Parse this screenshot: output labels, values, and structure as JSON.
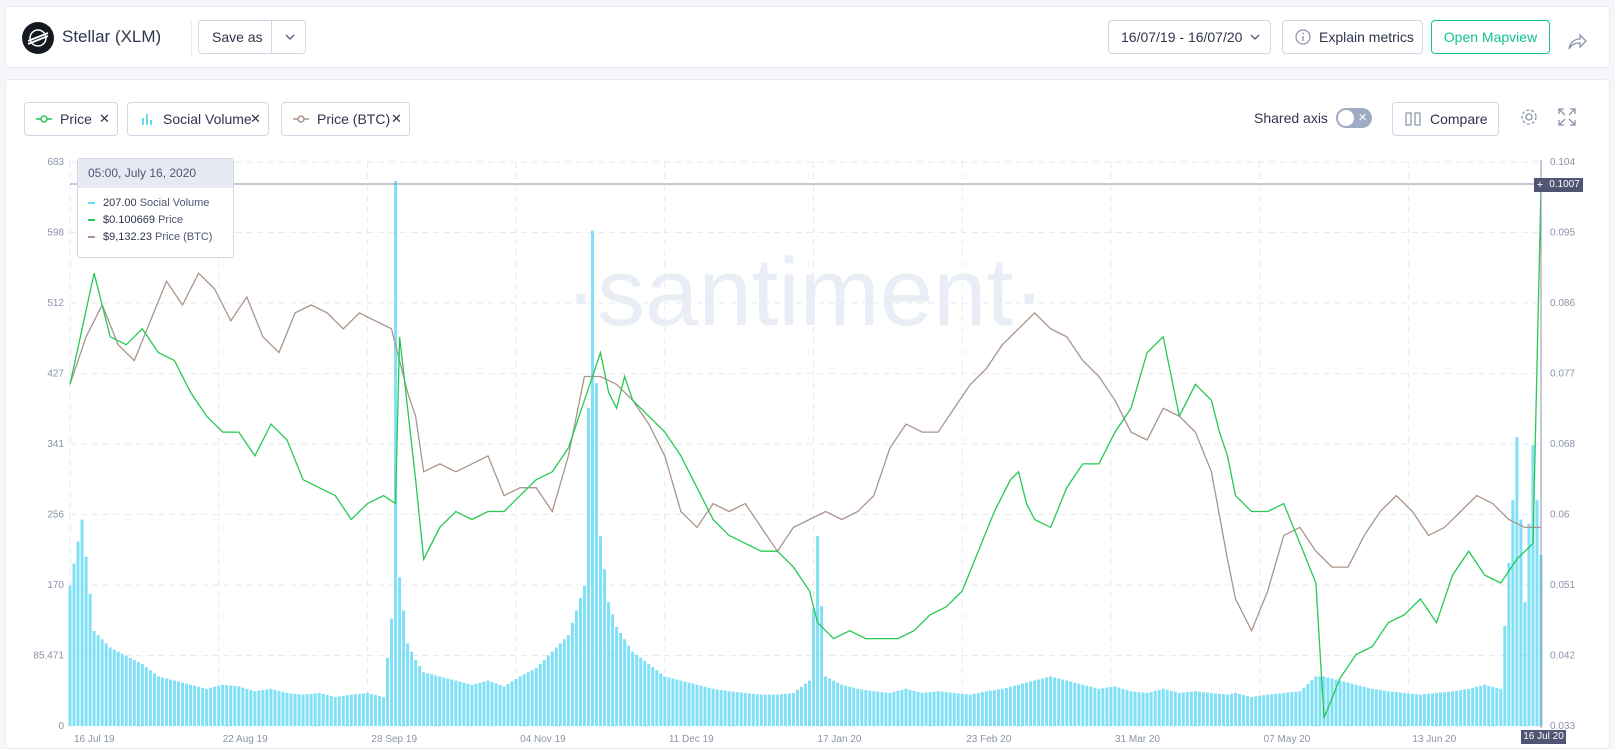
{
  "header": {
    "title": "Stellar (XLM)",
    "save_as": "Save as",
    "date_range": "16/07/19 - 16/07/20",
    "explain_metrics": "Explain metrics",
    "open_mapview": "Open Mapview"
  },
  "metrics": [
    {
      "label": "Price",
      "color": "#26c953"
    },
    {
      "label": "Social Volume",
      "color": "#68dbf4"
    },
    {
      "label": "Price (BTC)",
      "color": "#ac948c"
    }
  ],
  "controls": {
    "shared_axis": "Shared axis",
    "toggle_state": "✕",
    "compare": "Compare"
  },
  "watermark": "·santiment·",
  "tooltip": {
    "date": "05:00, July 16, 2020",
    "rows": [
      {
        "value": "207.00",
        "name": "Social Volume",
        "color": "#68dbf4"
      },
      {
        "value": "$0.100669",
        "name": "Price",
        "color": "#26c953"
      },
      {
        "value": "$9,132.23",
        "name": "Price (BTC)",
        "color": "#ac948c"
      }
    ]
  },
  "cursor_value": "0.1007",
  "cursor_date": "16 Jul 20",
  "chart_data": {
    "type": "line",
    "left_axis": {
      "ticks": [
        "683",
        "598",
        "512",
        "427",
        "341",
        "256",
        "170",
        "85.471",
        "0"
      ],
      "range": [
        0,
        683
      ]
    },
    "right_axis": {
      "ticks": [
        "0.104",
        "0.095",
        "0.086",
        "0.077",
        "0.068",
        "0.06",
        "0.051",
        "0.042",
        "0.033"
      ],
      "range": [
        0.033,
        0.104
      ]
    },
    "x_ticks": [
      "16 Jul 19",
      "22 Aug 19",
      "28 Sep 19",
      "04 Nov 19",
      "11 Dec 19",
      "17 Jan 20",
      "23 Feb 20",
      "31 Mar 20",
      "07 May 20",
      "13 Jun 20"
    ],
    "x_range_days": [
      0,
      366
    ],
    "x_tick_days": [
      0,
      37,
      74,
      111,
      148,
      185,
      222,
      259,
      296,
      333
    ],
    "series": [
      {
        "name": "Price",
        "axis": "right",
        "color": "#26c953",
        "points": [
          [
            0,
            0.076
          ],
          [
            3,
            0.083
          ],
          [
            6,
            0.09
          ],
          [
            10,
            0.082
          ],
          [
            14,
            0.081
          ],
          [
            18,
            0.083
          ],
          [
            22,
            0.08
          ],
          [
            26,
            0.079
          ],
          [
            30,
            0.075
          ],
          [
            34,
            0.072
          ],
          [
            38,
            0.07
          ],
          [
            42,
            0.07
          ],
          [
            46,
            0.067
          ],
          [
            50,
            0.071
          ],
          [
            54,
            0.069
          ],
          [
            58,
            0.064
          ],
          [
            62,
            0.063
          ],
          [
            66,
            0.062
          ],
          [
            70,
            0.059
          ],
          [
            74,
            0.061
          ],
          [
            78,
            0.062
          ],
          [
            81,
            0.061
          ],
          [
            82,
            0.082
          ],
          [
            84,
            0.073
          ],
          [
            86,
            0.064
          ],
          [
            88,
            0.054
          ],
          [
            92,
            0.058
          ],
          [
            96,
            0.06
          ],
          [
            100,
            0.059
          ],
          [
            104,
            0.06
          ],
          [
            108,
            0.06
          ],
          [
            112,
            0.062
          ],
          [
            116,
            0.064
          ],
          [
            120,
            0.065
          ],
          [
            124,
            0.068
          ],
          [
            128,
            0.074
          ],
          [
            130,
            0.077
          ],
          [
            132,
            0.08
          ],
          [
            134,
            0.075
          ],
          [
            136,
            0.073
          ],
          [
            138,
            0.077
          ],
          [
            140,
            0.074
          ],
          [
            144,
            0.072
          ],
          [
            148,
            0.07
          ],
          [
            152,
            0.067
          ],
          [
            156,
            0.063
          ],
          [
            160,
            0.059
          ],
          [
            164,
            0.057
          ],
          [
            168,
            0.056
          ],
          [
            172,
            0.055
          ],
          [
            176,
            0.055
          ],
          [
            180,
            0.053
          ],
          [
            184,
            0.05
          ],
          [
            186,
            0.046
          ],
          [
            190,
            0.044
          ],
          [
            194,
            0.045
          ],
          [
            198,
            0.044
          ],
          [
            202,
            0.044
          ],
          [
            206,
            0.044
          ],
          [
            210,
            0.045
          ],
          [
            214,
            0.047
          ],
          [
            218,
            0.048
          ],
          [
            222,
            0.05
          ],
          [
            226,
            0.055
          ],
          [
            230,
            0.06
          ],
          [
            234,
            0.064
          ],
          [
            236,
            0.065
          ],
          [
            238,
            0.061
          ],
          [
            240,
            0.059
          ],
          [
            244,
            0.058
          ],
          [
            248,
            0.063
          ],
          [
            252,
            0.066
          ],
          [
            256,
            0.066
          ],
          [
            260,
            0.07
          ],
          [
            264,
            0.073
          ],
          [
            268,
            0.08
          ],
          [
            272,
            0.082
          ],
          [
            276,
            0.072
          ],
          [
            280,
            0.076
          ],
          [
            284,
            0.074
          ],
          [
            286,
            0.07
          ],
          [
            288,
            0.067
          ],
          [
            290,
            0.062
          ],
          [
            294,
            0.06
          ],
          [
            298,
            0.06
          ],
          [
            302,
            0.061
          ],
          [
            306,
            0.056
          ],
          [
            310,
            0.051
          ],
          [
            312,
            0.034
          ],
          [
            316,
            0.039
          ],
          [
            320,
            0.042
          ],
          [
            324,
            0.043
          ],
          [
            328,
            0.046
          ],
          [
            332,
            0.047
          ],
          [
            336,
            0.049
          ],
          [
            340,
            0.046
          ],
          [
            344,
            0.052
          ],
          [
            348,
            0.055
          ],
          [
            352,
            0.052
          ],
          [
            356,
            0.051
          ],
          [
            360,
            0.054
          ],
          [
            364,
            0.056
          ],
          [
            366,
            0.1007
          ]
        ]
      },
      {
        "name": "Price (BTC)",
        "axis": "right",
        "color": "#ac948c",
        "points": [
          [
            0,
            0.076
          ],
          [
            4,
            0.082
          ],
          [
            8,
            0.086
          ],
          [
            12,
            0.081
          ],
          [
            16,
            0.079
          ],
          [
            20,
            0.084
          ],
          [
            24,
            0.089
          ],
          [
            28,
            0.086
          ],
          [
            32,
            0.09
          ],
          [
            36,
            0.088
          ],
          [
            40,
            0.084
          ],
          [
            44,
            0.087
          ],
          [
            48,
            0.082
          ],
          [
            52,
            0.08
          ],
          [
            56,
            0.085
          ],
          [
            60,
            0.086
          ],
          [
            64,
            0.085
          ],
          [
            68,
            0.083
          ],
          [
            72,
            0.085
          ],
          [
            76,
            0.084
          ],
          [
            80,
            0.083
          ],
          [
            84,
            0.075
          ],
          [
            86,
            0.072
          ],
          [
            88,
            0.065
          ],
          [
            92,
            0.066
          ],
          [
            96,
            0.065
          ],
          [
            100,
            0.066
          ],
          [
            104,
            0.067
          ],
          [
            108,
            0.062
          ],
          [
            112,
            0.063
          ],
          [
            116,
            0.063
          ],
          [
            120,
            0.06
          ],
          [
            124,
            0.067
          ],
          [
            128,
            0.077
          ],
          [
            132,
            0.077
          ],
          [
            136,
            0.076
          ],
          [
            140,
            0.074
          ],
          [
            144,
            0.071
          ],
          [
            148,
            0.067
          ],
          [
            152,
            0.06
          ],
          [
            156,
            0.058
          ],
          [
            160,
            0.061
          ],
          [
            164,
            0.06
          ],
          [
            168,
            0.061
          ],
          [
            172,
            0.058
          ],
          [
            176,
            0.055
          ],
          [
            180,
            0.058
          ],
          [
            184,
            0.059
          ],
          [
            188,
            0.06
          ],
          [
            192,
            0.059
          ],
          [
            196,
            0.06
          ],
          [
            200,
            0.062
          ],
          [
            204,
            0.068
          ],
          [
            208,
            0.071
          ],
          [
            212,
            0.07
          ],
          [
            216,
            0.07
          ],
          [
            220,
            0.073
          ],
          [
            224,
            0.076
          ],
          [
            228,
            0.078
          ],
          [
            232,
            0.081
          ],
          [
            236,
            0.083
          ],
          [
            240,
            0.085
          ],
          [
            244,
            0.083
          ],
          [
            248,
            0.082
          ],
          [
            252,
            0.079
          ],
          [
            256,
            0.077
          ],
          [
            260,
            0.074
          ],
          [
            264,
            0.07
          ],
          [
            268,
            0.069
          ],
          [
            272,
            0.073
          ],
          [
            276,
            0.072
          ],
          [
            280,
            0.07
          ],
          [
            284,
            0.065
          ],
          [
            288,
            0.054
          ],
          [
            290,
            0.049
          ],
          [
            294,
            0.045
          ],
          [
            298,
            0.05
          ],
          [
            302,
            0.057
          ],
          [
            306,
            0.058
          ],
          [
            310,
            0.055
          ],
          [
            314,
            0.053
          ],
          [
            318,
            0.053
          ],
          [
            322,
            0.057
          ],
          [
            326,
            0.06
          ],
          [
            330,
            0.062
          ],
          [
            334,
            0.06
          ],
          [
            338,
            0.057
          ],
          [
            342,
            0.058
          ],
          [
            346,
            0.06
          ],
          [
            350,
            0.062
          ],
          [
            354,
            0.061
          ],
          [
            358,
            0.059
          ],
          [
            362,
            0.058
          ],
          [
            366,
            0.058
          ]
        ]
      },
      {
        "name": "Social Volume",
        "axis": "left",
        "type": "bar",
        "color": "#68dbf4",
        "points": [
          [
            0,
            170
          ],
          [
            3,
            250
          ],
          [
            6,
            115
          ],
          [
            10,
            95
          ],
          [
            14,
            85
          ],
          [
            18,
            75
          ],
          [
            22,
            60
          ],
          [
            26,
            55
          ],
          [
            30,
            50
          ],
          [
            34,
            45
          ],
          [
            38,
            50
          ],
          [
            42,
            48
          ],
          [
            46,
            42
          ],
          [
            50,
            45
          ],
          [
            54,
            40
          ],
          [
            58,
            38
          ],
          [
            62,
            40
          ],
          [
            66,
            35
          ],
          [
            70,
            38
          ],
          [
            74,
            40
          ],
          [
            78,
            35
          ],
          [
            80,
            130
          ],
          [
            81,
            660
          ],
          [
            82,
            180
          ],
          [
            84,
            100
          ],
          [
            86,
            80
          ],
          [
            88,
            65
          ],
          [
            92,
            60
          ],
          [
            96,
            55
          ],
          [
            100,
            50
          ],
          [
            104,
            55
          ],
          [
            108,
            48
          ],
          [
            112,
            60
          ],
          [
            116,
            70
          ],
          [
            120,
            90
          ],
          [
            124,
            110
          ],
          [
            128,
            170
          ],
          [
            130,
            600
          ],
          [
            132,
            230
          ],
          [
            134,
            150
          ],
          [
            136,
            120
          ],
          [
            140,
            90
          ],
          [
            144,
            75
          ],
          [
            148,
            60
          ],
          [
            152,
            55
          ],
          [
            156,
            50
          ],
          [
            160,
            45
          ],
          [
            164,
            42
          ],
          [
            168,
            40
          ],
          [
            172,
            38
          ],
          [
            176,
            38
          ],
          [
            180,
            40
          ],
          [
            184,
            55
          ],
          [
            186,
            230
          ],
          [
            188,
            60
          ],
          [
            192,
            50
          ],
          [
            196,
            45
          ],
          [
            200,
            42
          ],
          [
            204,
            40
          ],
          [
            208,
            45
          ],
          [
            212,
            40
          ],
          [
            216,
            42
          ],
          [
            220,
            40
          ],
          [
            224,
            38
          ],
          [
            228,
            42
          ],
          [
            232,
            45
          ],
          [
            236,
            50
          ],
          [
            240,
            55
          ],
          [
            244,
            60
          ],
          [
            248,
            55
          ],
          [
            252,
            50
          ],
          [
            256,
            45
          ],
          [
            260,
            48
          ],
          [
            264,
            42
          ],
          [
            268,
            40
          ],
          [
            272,
            45
          ],
          [
            276,
            40
          ],
          [
            280,
            42
          ],
          [
            284,
            40
          ],
          [
            288,
            38
          ],
          [
            290,
            40
          ],
          [
            294,
            35
          ],
          [
            298,
            38
          ],
          [
            302,
            40
          ],
          [
            306,
            42
          ],
          [
            310,
            60
          ],
          [
            312,
            60
          ],
          [
            316,
            55
          ],
          [
            320,
            50
          ],
          [
            324,
            45
          ],
          [
            328,
            42
          ],
          [
            332,
            40
          ],
          [
            336,
            38
          ],
          [
            340,
            40
          ],
          [
            344,
            42
          ],
          [
            348,
            45
          ],
          [
            352,
            50
          ],
          [
            356,
            45
          ],
          [
            360,
            350
          ],
          [
            362,
            150
          ],
          [
            364,
            340
          ],
          [
            366,
            207
          ]
        ]
      }
    ]
  }
}
